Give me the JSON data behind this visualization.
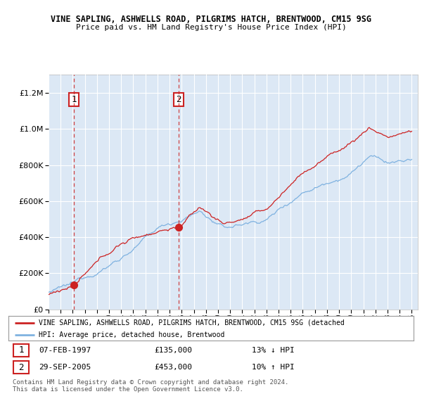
{
  "title": "VINE SAPLING, ASHWELLS ROAD, PILGRIMS HATCH, BRENTWOOD, CM15 9SG",
  "subtitle": "Price paid vs. HM Land Registry's House Price Index (HPI)",
  "hpi_label": "HPI: Average price, detached house, Brentwood",
  "property_label": "VINE SAPLING, ASHWELLS ROAD, PILGRIMS HATCH, BRENTWOOD, CM15 9SG (detached",
  "sale1_date": "07-FEB-1997",
  "sale1_price": 135000,
  "sale1_label": "13% ↓ HPI",
  "sale1_x": 1997.1,
  "sale2_date": "29-SEP-2005",
  "sale2_price": 453000,
  "sale2_label": "10% ↑ HPI",
  "sale2_x": 2005.75,
  "xmin": 1995,
  "xmax": 2025.5,
  "ymin": 0,
  "ymax": 1300000,
  "background_color": "#dce8f5",
  "hpi_color": "#7fb2e0",
  "property_color": "#cc2222",
  "grid_color": "#ffffff",
  "sale_shade_color": "#c8d8ee",
  "footnote": "Contains HM Land Registry data © Crown copyright and database right 2024.\nThis data is licensed under the Open Government Licence v3.0."
}
